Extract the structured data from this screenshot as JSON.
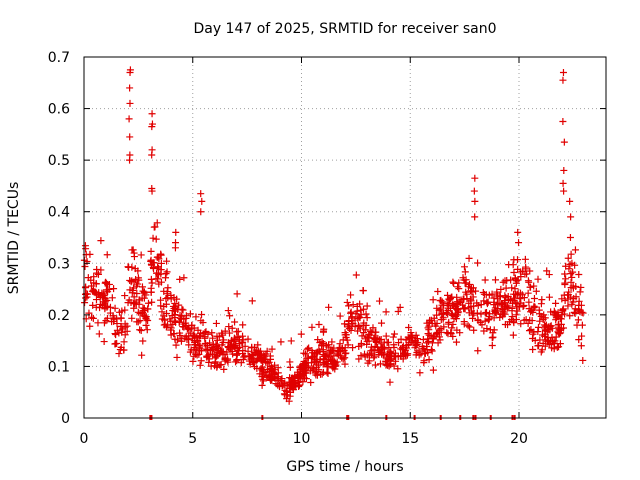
{
  "chart_data": {
    "type": "scatter",
    "title": "Day 147 of 2025, SRMTID for receiver san0",
    "xlabel": "GPS time / hours",
    "ylabel": "SRMTID / TECUs",
    "xlim": [
      0,
      24
    ],
    "ylim": [
      0,
      0.7
    ],
    "xticks": [
      0,
      5,
      10,
      15,
      20
    ],
    "xtick_labels": [
      "0",
      "5",
      "10",
      "15",
      "20"
    ],
    "yticks": [
      0,
      0.1,
      0.2,
      0.3,
      0.4,
      0.5,
      0.6,
      0.7
    ],
    "ytick_labels": [
      "0",
      "0.1",
      "0.2",
      "0.3",
      "0.4",
      "0.5",
      "0.6",
      "0.7"
    ],
    "grid": true,
    "marker": "+",
    "color": "#e00000",
    "baseline_value_hours": [
      3.05,
      3.1,
      8.2,
      12.1,
      12.15,
      13.9,
      15.2,
      16.4,
      17.3,
      17.9,
      18.0,
      18.7,
      19.7,
      19.8
    ],
    "envelope": {
      "x": [
        0.0,
        0.2,
        0.5,
        1.0,
        1.5,
        1.8,
        2.0,
        2.1,
        2.3,
        2.6,
        3.0,
        3.2,
        3.5,
        4.0,
        4.5,
        5.0,
        5.5,
        6.0,
        7.0,
        8.0,
        8.5,
        9.0,
        9.3,
        9.6,
        10.0,
        10.5,
        11.0,
        11.5,
        12.0,
        12.3,
        12.6,
        13.0,
        13.5,
        14.0,
        14.5,
        15.0,
        15.5,
        16.0,
        16.5,
        17.0,
        17.5,
        17.8,
        18.2,
        18.6,
        19.0,
        19.5,
        19.9,
        20.2,
        20.6,
        21.0,
        21.5,
        21.9,
        22.1,
        22.4,
        22.7,
        22.95
      ],
      "y": [
        0.27,
        0.25,
        0.24,
        0.23,
        0.18,
        0.15,
        0.22,
        0.28,
        0.26,
        0.2,
        0.22,
        0.32,
        0.28,
        0.2,
        0.18,
        0.15,
        0.15,
        0.13,
        0.14,
        0.11,
        0.1,
        0.07,
        0.05,
        0.07,
        0.09,
        0.11,
        0.12,
        0.11,
        0.14,
        0.2,
        0.18,
        0.15,
        0.14,
        0.12,
        0.13,
        0.15,
        0.14,
        0.15,
        0.2,
        0.21,
        0.22,
        0.22,
        0.2,
        0.19,
        0.2,
        0.22,
        0.23,
        0.26,
        0.2,
        0.18,
        0.15,
        0.18,
        0.24,
        0.27,
        0.22,
        0.17
      ]
    },
    "spikes": [
      {
        "x": 2.1,
        "values": [
          0.675,
          0.67,
          0.64,
          0.61,
          0.58,
          0.545,
          0.51,
          0.5
        ]
      },
      {
        "x": 3.15,
        "values": [
          0.59,
          0.57,
          0.565,
          0.52,
          0.51,
          0.445,
          0.44
        ]
      },
      {
        "x": 4.2,
        "values": [
          0.36,
          0.34,
          0.33
        ]
      },
      {
        "x": 5.4,
        "values": [
          0.435,
          0.42,
          0.4
        ]
      },
      {
        "x": 17.95,
        "values": [
          0.465,
          0.44,
          0.42,
          0.39
        ]
      },
      {
        "x": 19.95,
        "values": [
          0.36,
          0.34
        ]
      },
      {
        "x": 22.05,
        "values": [
          0.67,
          0.655,
          0.575,
          0.535,
          0.48,
          0.455,
          0.44
        ]
      },
      {
        "x": 22.35,
        "values": [
          0.42,
          0.39,
          0.35
        ]
      }
    ],
    "seed": 147,
    "n_points": 1500
  }
}
